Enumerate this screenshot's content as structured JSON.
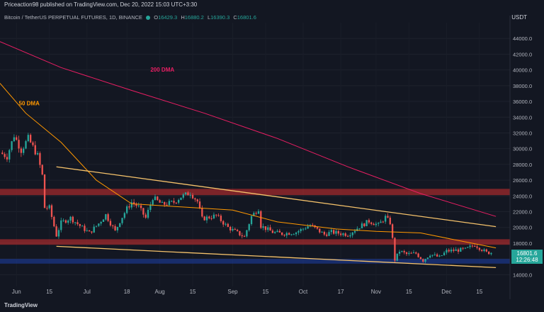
{
  "header": {
    "published": "Priceaction98 published on TradingView.com, Dec 20, 2022 15:03 UTC+3:30",
    "symbol": "Bitcoin / TetherUS PERPETUAL FUTURES, 1D, BINANCE",
    "o_label": "O",
    "o_value": "16429.3",
    "h_label": "H",
    "h_value": "16880.2",
    "l_label": "L",
    "l_value": "16390.3",
    "c_label": "C",
    "c_value": "16801.6",
    "currency": "USDT"
  },
  "price_tag": {
    "price": "16801.6",
    "countdown": "12:26:48"
  },
  "footer": {
    "brand": "TradingView"
  },
  "chart_data": {
    "type": "candlestick",
    "y_ticks": [
      14000,
      16000,
      18000,
      20000,
      22000,
      24000,
      26000,
      28000,
      30000,
      32000,
      34000,
      36000,
      38000,
      40000,
      42000,
      44000
    ],
    "y_tick_labels": [
      "14000.0",
      "16000.0",
      "18000.0",
      "20000.0",
      "22000.0",
      "24000.0",
      "26000.0",
      "28000.0",
      "30000.0",
      "32000.0",
      "34000.0",
      "36000.0",
      "38000.0",
      "40000.0",
      "42000.0",
      "44000.0"
    ],
    "ylim": [
      12500,
      46000
    ],
    "x_range": [
      "2022-05-25",
      "2022-12-28"
    ],
    "x_ticks": [
      {
        "date": "2022-06-01",
        "label": "Jun"
      },
      {
        "date": "2022-06-15",
        "label": "15"
      },
      {
        "date": "2022-07-01",
        "label": "Jul"
      },
      {
        "date": "2022-07-18",
        "label": "18"
      },
      {
        "date": "2022-08-01",
        "label": "Aug"
      },
      {
        "date": "2022-08-15",
        "label": "15"
      },
      {
        "date": "2022-09-01",
        "label": "Sep"
      },
      {
        "date": "2022-09-15",
        "label": "15"
      },
      {
        "date": "2022-10-01",
        "label": "Oct"
      },
      {
        "date": "2022-10-17",
        "label": "17"
      },
      {
        "date": "2022-11-01",
        "label": "Nov"
      },
      {
        "date": "2022-11-15",
        "label": "15"
      },
      {
        "date": "2022-12-01",
        "label": "Dec"
      },
      {
        "date": "2022-12-15",
        "label": "15"
      }
    ],
    "close_path": [
      [
        "2022-05-25",
        29500
      ],
      [
        "2022-05-28",
        29000
      ],
      [
        "2022-05-31",
        31700
      ],
      [
        "2022-06-03",
        29800
      ],
      [
        "2022-06-06",
        31300
      ],
      [
        "2022-06-08",
        30200
      ],
      [
        "2022-06-10",
        29100
      ],
      [
        "2022-06-12",
        26600
      ],
      [
        "2022-06-13",
        22500
      ],
      [
        "2022-06-15",
        22500
      ],
      [
        "2022-06-18",
        19000
      ],
      [
        "2022-06-20",
        20600
      ],
      [
        "2022-06-24",
        21200
      ],
      [
        "2022-06-28",
        20200
      ],
      [
        "2022-07-02",
        19300
      ],
      [
        "2022-07-06",
        20500
      ],
      [
        "2022-07-09",
        21600
      ],
      [
        "2022-07-13",
        19500
      ],
      [
        "2022-07-15",
        20800
      ],
      [
        "2022-07-18",
        22400
      ],
      [
        "2022-07-20",
        23200
      ],
      [
        "2022-07-23",
        22600
      ],
      [
        "2022-07-26",
        21200
      ],
      [
        "2022-07-29",
        23800
      ],
      [
        "2022-08-02",
        22900
      ],
      [
        "2022-08-07",
        23200
      ],
      [
        "2022-08-10",
        23900
      ],
      [
        "2022-08-14",
        24400
      ],
      [
        "2022-08-17",
        23300
      ],
      [
        "2022-08-19",
        21100
      ],
      [
        "2022-08-25",
        21500
      ],
      [
        "2022-08-30",
        20000
      ],
      [
        "2022-09-06",
        18800
      ],
      [
        "2022-09-09",
        21400
      ],
      [
        "2022-09-12",
        22400
      ],
      [
        "2022-09-13",
        20200
      ],
      [
        "2022-09-18",
        19400
      ],
      [
        "2022-09-22",
        19200
      ],
      [
        "2022-09-28",
        19400
      ],
      [
        "2022-10-04",
        20300
      ],
      [
        "2022-10-10",
        19100
      ],
      [
        "2022-10-13",
        19400
      ],
      [
        "2022-10-20",
        19100
      ],
      [
        "2022-10-25",
        20100
      ],
      [
        "2022-10-29",
        20800
      ],
      [
        "2022-11-02",
        20300
      ],
      [
        "2022-11-05",
        21300
      ],
      [
        "2022-11-07",
        20600
      ],
      [
        "2022-11-08",
        18500
      ],
      [
        "2022-11-09",
        15900
      ],
      [
        "2022-11-11",
        17000
      ],
      [
        "2022-11-14",
        16600
      ],
      [
        "2022-11-18",
        16700
      ],
      [
        "2022-11-21",
        15800
      ],
      [
        "2022-11-24",
        16600
      ],
      [
        "2022-11-28",
        16200
      ],
      [
        "2022-12-01",
        17000
      ],
      [
        "2022-12-05",
        17100
      ],
      [
        "2022-12-09",
        17200
      ],
      [
        "2022-12-13",
        17800
      ],
      [
        "2022-12-15",
        17400
      ],
      [
        "2022-12-18",
        16800
      ],
      [
        "2022-12-20",
        16801.6
      ]
    ],
    "ma_200": {
      "name": "200 DMA",
      "color": "#e91e63",
      "points": [
        [
          "2022-05-25",
          43600
        ],
        [
          "2022-06-20",
          40300
        ],
        [
          "2022-07-20",
          37400
        ],
        [
          "2022-08-20",
          34500
        ],
        [
          "2022-09-20",
          31300
        ],
        [
          "2022-10-20",
          27700
        ],
        [
          "2022-11-20",
          24300
        ],
        [
          "2022-12-22",
          21400
        ]
      ]
    },
    "ma_50": {
      "name": "50 DMA",
      "color": "#ff9800",
      "points": [
        [
          "2022-05-25",
          38300
        ],
        [
          "2022-06-05",
          34500
        ],
        [
          "2022-06-20",
          30800
        ],
        [
          "2022-07-05",
          26000
        ],
        [
          "2022-07-20",
          23000
        ],
        [
          "2022-08-10",
          22600
        ],
        [
          "2022-09-01",
          22200
        ],
        [
          "2022-09-20",
          20700
        ],
        [
          "2022-10-15",
          19800
        ],
        [
          "2022-11-01",
          19500
        ],
        [
          "2022-11-20",
          19300
        ],
        [
          "2022-12-10",
          18100
        ],
        [
          "2022-12-22",
          17400
        ]
      ]
    },
    "trendlines": [
      {
        "color": "#f5c26b",
        "from": [
          "2022-06-18",
          27700
        ],
        "to": [
          "2022-12-22",
          20100
        ]
      },
      {
        "color": "#f5c26b",
        "from": [
          "2022-06-18",
          17600
        ],
        "to": [
          "2022-12-22",
          14900
        ]
      }
    ],
    "zones": [
      {
        "color": "#d32f2f",
        "from": 24100,
        "to": 24900
      },
      {
        "color": "#d32f2f",
        "from": 17800,
        "to": 18500
      },
      {
        "color": "#1e3fa8",
        "from": 15400,
        "to": 16000
      }
    ],
    "annotations": [
      {
        "text": "200 DMA",
        "date": "2022-07-28",
        "value": 39800,
        "color": "#e91e63"
      },
      {
        "text": "50 DMA",
        "date": "2022-06-02",
        "value": 35500,
        "color": "#ff9800"
      }
    ]
  }
}
